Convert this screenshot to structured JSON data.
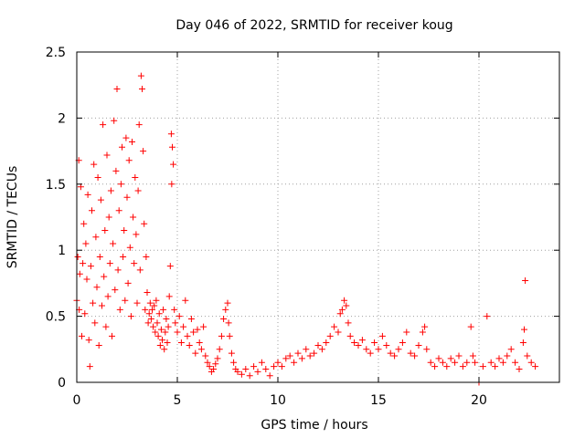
{
  "chart_data": {
    "type": "scatter",
    "title": "Day 046 of 2022, SRMTID for receiver koug",
    "xlabel": "GPS time / hours",
    "ylabel": "SRMTID / TECUs",
    "xlim": [
      0,
      24
    ],
    "ylim": [
      0,
      2.5
    ],
    "x_ticks": [
      0,
      5,
      10,
      15,
      20
    ],
    "x_tick_labels": [
      "0",
      "5",
      "10",
      "15",
      "20"
    ],
    "y_ticks": [
      0,
      0.5,
      1,
      1.5,
      2,
      2.5
    ],
    "y_tick_labels": [
      "0",
      "0.5",
      "1",
      "1.5",
      "2",
      "2.5"
    ],
    "grid": true,
    "marker": "+",
    "color": "#ff0000",
    "series": [
      {
        "name": "SRMTID",
        "points": [
          [
            0.0,
            0.62
          ],
          [
            0.05,
            0.95
          ],
          [
            0.1,
            1.68
          ],
          [
            0.12,
            0.55
          ],
          [
            0.15,
            0.82
          ],
          [
            0.2,
            1.48
          ],
          [
            0.25,
            0.35
          ],
          [
            0.3,
            0.9
          ],
          [
            0.35,
            1.2
          ],
          [
            0.4,
            0.52
          ],
          [
            0.45,
            1.05
          ],
          [
            0.5,
            0.78
          ],
          [
            0.55,
            1.42
          ],
          [
            0.6,
            0.32
          ],
          [
            0.65,
            0.12
          ],
          [
            0.7,
            0.88
          ],
          [
            0.75,
            1.3
          ],
          [
            0.8,
            0.6
          ],
          [
            0.85,
            1.65
          ],
          [
            0.9,
            0.45
          ],
          [
            0.95,
            1.1
          ],
          [
            1.0,
            0.72
          ],
          [
            1.05,
            1.55
          ],
          [
            1.1,
            0.28
          ],
          [
            1.15,
            0.95
          ],
          [
            1.2,
            1.38
          ],
          [
            1.25,
            0.58
          ],
          [
            1.3,
            1.95
          ],
          [
            1.35,
            0.8
          ],
          [
            1.4,
            1.15
          ],
          [
            1.45,
            0.42
          ],
          [
            1.5,
            1.72
          ],
          [
            1.55,
            0.65
          ],
          [
            1.6,
            1.25
          ],
          [
            1.65,
            0.9
          ],
          [
            1.7,
            1.45
          ],
          [
            1.75,
            0.35
          ],
          [
            1.8,
            1.05
          ],
          [
            1.85,
            1.98
          ],
          [
            1.9,
            0.7
          ],
          [
            1.95,
            1.6
          ],
          [
            2.0,
            2.22
          ],
          [
            2.05,
            0.85
          ],
          [
            2.1,
            1.3
          ],
          [
            2.15,
            0.55
          ],
          [
            2.2,
            1.5
          ],
          [
            2.25,
            1.78
          ],
          [
            2.3,
            0.95
          ],
          [
            2.35,
            1.15
          ],
          [
            2.4,
            0.62
          ],
          [
            2.45,
            1.85
          ],
          [
            2.5,
            1.4
          ],
          [
            2.55,
            0.75
          ],
          [
            2.6,
            1.68
          ],
          [
            2.65,
            1.02
          ],
          [
            2.7,
            0.5
          ],
          [
            2.75,
            1.82
          ],
          [
            2.8,
            1.25
          ],
          [
            2.85,
            0.9
          ],
          [
            2.9,
            1.55
          ],
          [
            2.95,
            1.12
          ],
          [
            3.0,
            0.6
          ],
          [
            3.05,
            1.45
          ],
          [
            3.1,
            1.95
          ],
          [
            3.15,
            0.85
          ],
          [
            3.2,
            2.32
          ],
          [
            3.25,
            2.22
          ],
          [
            3.3,
            1.75
          ],
          [
            3.35,
            1.2
          ],
          [
            3.4,
            0.55
          ],
          [
            3.45,
            0.95
          ],
          [
            3.5,
            0.68
          ],
          [
            3.55,
            0.45
          ],
          [
            3.6,
            0.52
          ],
          [
            3.65,
            0.6
          ],
          [
            3.7,
            0.48
          ],
          [
            3.75,
            0.55
          ],
          [
            3.8,
            0.42
          ],
          [
            3.85,
            0.58
          ],
          [
            3.9,
            0.38
          ],
          [
            3.95,
            0.62
          ],
          [
            4.0,
            0.45
          ],
          [
            4.05,
            0.35
          ],
          [
            4.1,
            0.52
          ],
          [
            4.15,
            0.28
          ],
          [
            4.2,
            0.4
          ],
          [
            4.25,
            0.32
          ],
          [
            4.3,
            0.55
          ],
          [
            4.35,
            0.25
          ],
          [
            4.4,
            0.38
          ],
          [
            4.45,
            0.48
          ],
          [
            4.5,
            0.3
          ],
          [
            4.55,
            0.42
          ],
          [
            4.6,
            0.65
          ],
          [
            4.65,
            0.88
          ],
          [
            4.7,
            1.88
          ],
          [
            4.72,
            1.5
          ],
          [
            4.75,
            1.78
          ],
          [
            4.8,
            1.65
          ],
          [
            4.85,
            0.55
          ],
          [
            4.9,
            0.45
          ],
          [
            5.0,
            0.38
          ],
          [
            5.1,
            0.5
          ],
          [
            5.2,
            0.3
          ],
          [
            5.3,
            0.42
          ],
          [
            5.4,
            0.62
          ],
          [
            5.5,
            0.35
          ],
          [
            5.6,
            0.28
          ],
          [
            5.7,
            0.48
          ],
          [
            5.8,
            0.38
          ],
          [
            5.9,
            0.22
          ],
          [
            6.0,
            0.4
          ],
          [
            6.1,
            0.3
          ],
          [
            6.2,
            0.25
          ],
          [
            6.3,
            0.42
          ],
          [
            6.4,
            0.2
          ],
          [
            6.5,
            0.15
          ],
          [
            6.6,
            0.12
          ],
          [
            6.7,
            0.08
          ],
          [
            6.8,
            0.1
          ],
          [
            6.9,
            0.14
          ],
          [
            7.0,
            0.18
          ],
          [
            7.1,
            0.25
          ],
          [
            7.2,
            0.35
          ],
          [
            7.3,
            0.48
          ],
          [
            7.4,
            0.55
          ],
          [
            7.5,
            0.6
          ],
          [
            7.55,
            0.45
          ],
          [
            7.6,
            0.35
          ],
          [
            7.7,
            0.22
          ],
          [
            7.8,
            0.15
          ],
          [
            7.9,
            0.1
          ],
          [
            8.0,
            0.08
          ],
          [
            8.2,
            0.06
          ],
          [
            8.4,
            0.1
          ],
          [
            8.6,
            0.05
          ],
          [
            8.8,
            0.12
          ],
          [
            9.0,
            0.08
          ],
          [
            9.2,
            0.15
          ],
          [
            9.4,
            0.1
          ],
          [
            9.6,
            0.05
          ],
          [
            9.8,
            0.12
          ],
          [
            10.0,
            0.15
          ],
          [
            10.2,
            0.12
          ],
          [
            10.4,
            0.18
          ],
          [
            10.6,
            0.2
          ],
          [
            10.8,
            0.15
          ],
          [
            11.0,
            0.22
          ],
          [
            11.2,
            0.18
          ],
          [
            11.4,
            0.25
          ],
          [
            11.6,
            0.2
          ],
          [
            11.8,
            0.22
          ],
          [
            12.0,
            0.28
          ],
          [
            12.2,
            0.25
          ],
          [
            12.4,
            0.3
          ],
          [
            12.6,
            0.35
          ],
          [
            12.8,
            0.42
          ],
          [
            13.0,
            0.38
          ],
          [
            13.1,
            0.52
          ],
          [
            13.2,
            0.55
          ],
          [
            13.3,
            0.62
          ],
          [
            13.4,
            0.58
          ],
          [
            13.5,
            0.45
          ],
          [
            13.6,
            0.35
          ],
          [
            13.8,
            0.3
          ],
          [
            14.0,
            0.28
          ],
          [
            14.2,
            0.32
          ],
          [
            14.4,
            0.25
          ],
          [
            14.6,
            0.22
          ],
          [
            14.8,
            0.3
          ],
          [
            15.0,
            0.25
          ],
          [
            15.2,
            0.35
          ],
          [
            15.4,
            0.28
          ],
          [
            15.6,
            0.22
          ],
          [
            15.8,
            0.2
          ],
          [
            16.0,
            0.25
          ],
          [
            16.2,
            0.3
          ],
          [
            16.4,
            0.38
          ],
          [
            16.6,
            0.22
          ],
          [
            16.8,
            0.2
          ],
          [
            17.0,
            0.28
          ],
          [
            17.2,
            0.38
          ],
          [
            17.3,
            0.42
          ],
          [
            17.4,
            0.25
          ],
          [
            17.6,
            0.15
          ],
          [
            17.8,
            0.12
          ],
          [
            18.0,
            0.18
          ],
          [
            18.2,
            0.15
          ],
          [
            18.4,
            0.12
          ],
          [
            18.6,
            0.18
          ],
          [
            18.8,
            0.15
          ],
          [
            19.0,
            0.2
          ],
          [
            19.2,
            0.12
          ],
          [
            19.4,
            0.15
          ],
          [
            19.6,
            0.42
          ],
          [
            19.7,
            0.2
          ],
          [
            19.8,
            0.15
          ],
          [
            20.0,
            0.0
          ],
          [
            20.2,
            0.12
          ],
          [
            20.4,
            0.5
          ],
          [
            20.6,
            0.15
          ],
          [
            20.8,
            0.12
          ],
          [
            21.0,
            0.18
          ],
          [
            21.2,
            0.15
          ],
          [
            21.4,
            0.2
          ],
          [
            21.6,
            0.25
          ],
          [
            21.8,
            0.15
          ],
          [
            22.0,
            0.1
          ],
          [
            22.2,
            0.3
          ],
          [
            22.25,
            0.4
          ],
          [
            22.3,
            0.77
          ],
          [
            22.4,
            0.2
          ],
          [
            22.6,
            0.15
          ],
          [
            22.8,
            0.12
          ]
        ]
      }
    ]
  }
}
